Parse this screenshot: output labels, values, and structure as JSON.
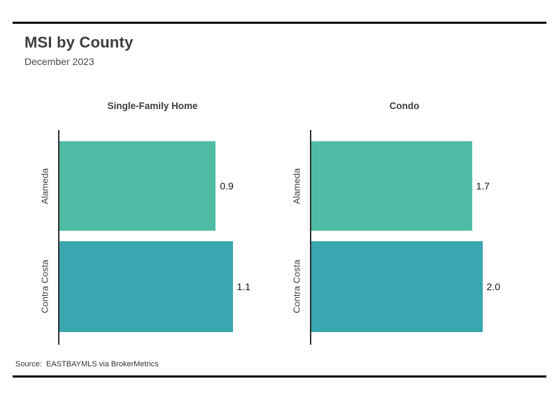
{
  "header": {
    "title": "MSI by County",
    "subtitle": "December 2023"
  },
  "chart_data": [
    {
      "type": "bar",
      "orientation": "horizontal",
      "title": "Single-Family Home",
      "categories": [
        "Alameda",
        "Contra Costa"
      ],
      "values": [
        0.9,
        1.1
      ],
      "value_labels": [
        "0.9",
        "1.1"
      ],
      "xlim": [
        0,
        1.1
      ],
      "bar_colors": [
        "#4fbda5",
        "#3aa7b0"
      ],
      "xlabel": "",
      "ylabel": "",
      "grid": false,
      "legend": false
    },
    {
      "type": "bar",
      "orientation": "horizontal",
      "title": "Condo",
      "categories": [
        "Alameda",
        "Contra Costa"
      ],
      "values": [
        1.7,
        2.0
      ],
      "value_labels": [
        "1.7",
        "2.0"
      ],
      "xlim": [
        0,
        2.0
      ],
      "bar_colors": [
        "#4fbda5",
        "#3aa7b0"
      ],
      "xlabel": "",
      "ylabel": "",
      "grid": false,
      "legend": false
    }
  ],
  "footer": {
    "source": "Source:  EASTBAYMLS via BrokerMetrics"
  },
  "colors": {
    "bar_teal_light": "#4fbda5",
    "bar_teal_dark": "#3aa7b0",
    "rule": "#000000",
    "axis": "#2f2f2f",
    "title_text": "#3d3d3d"
  }
}
